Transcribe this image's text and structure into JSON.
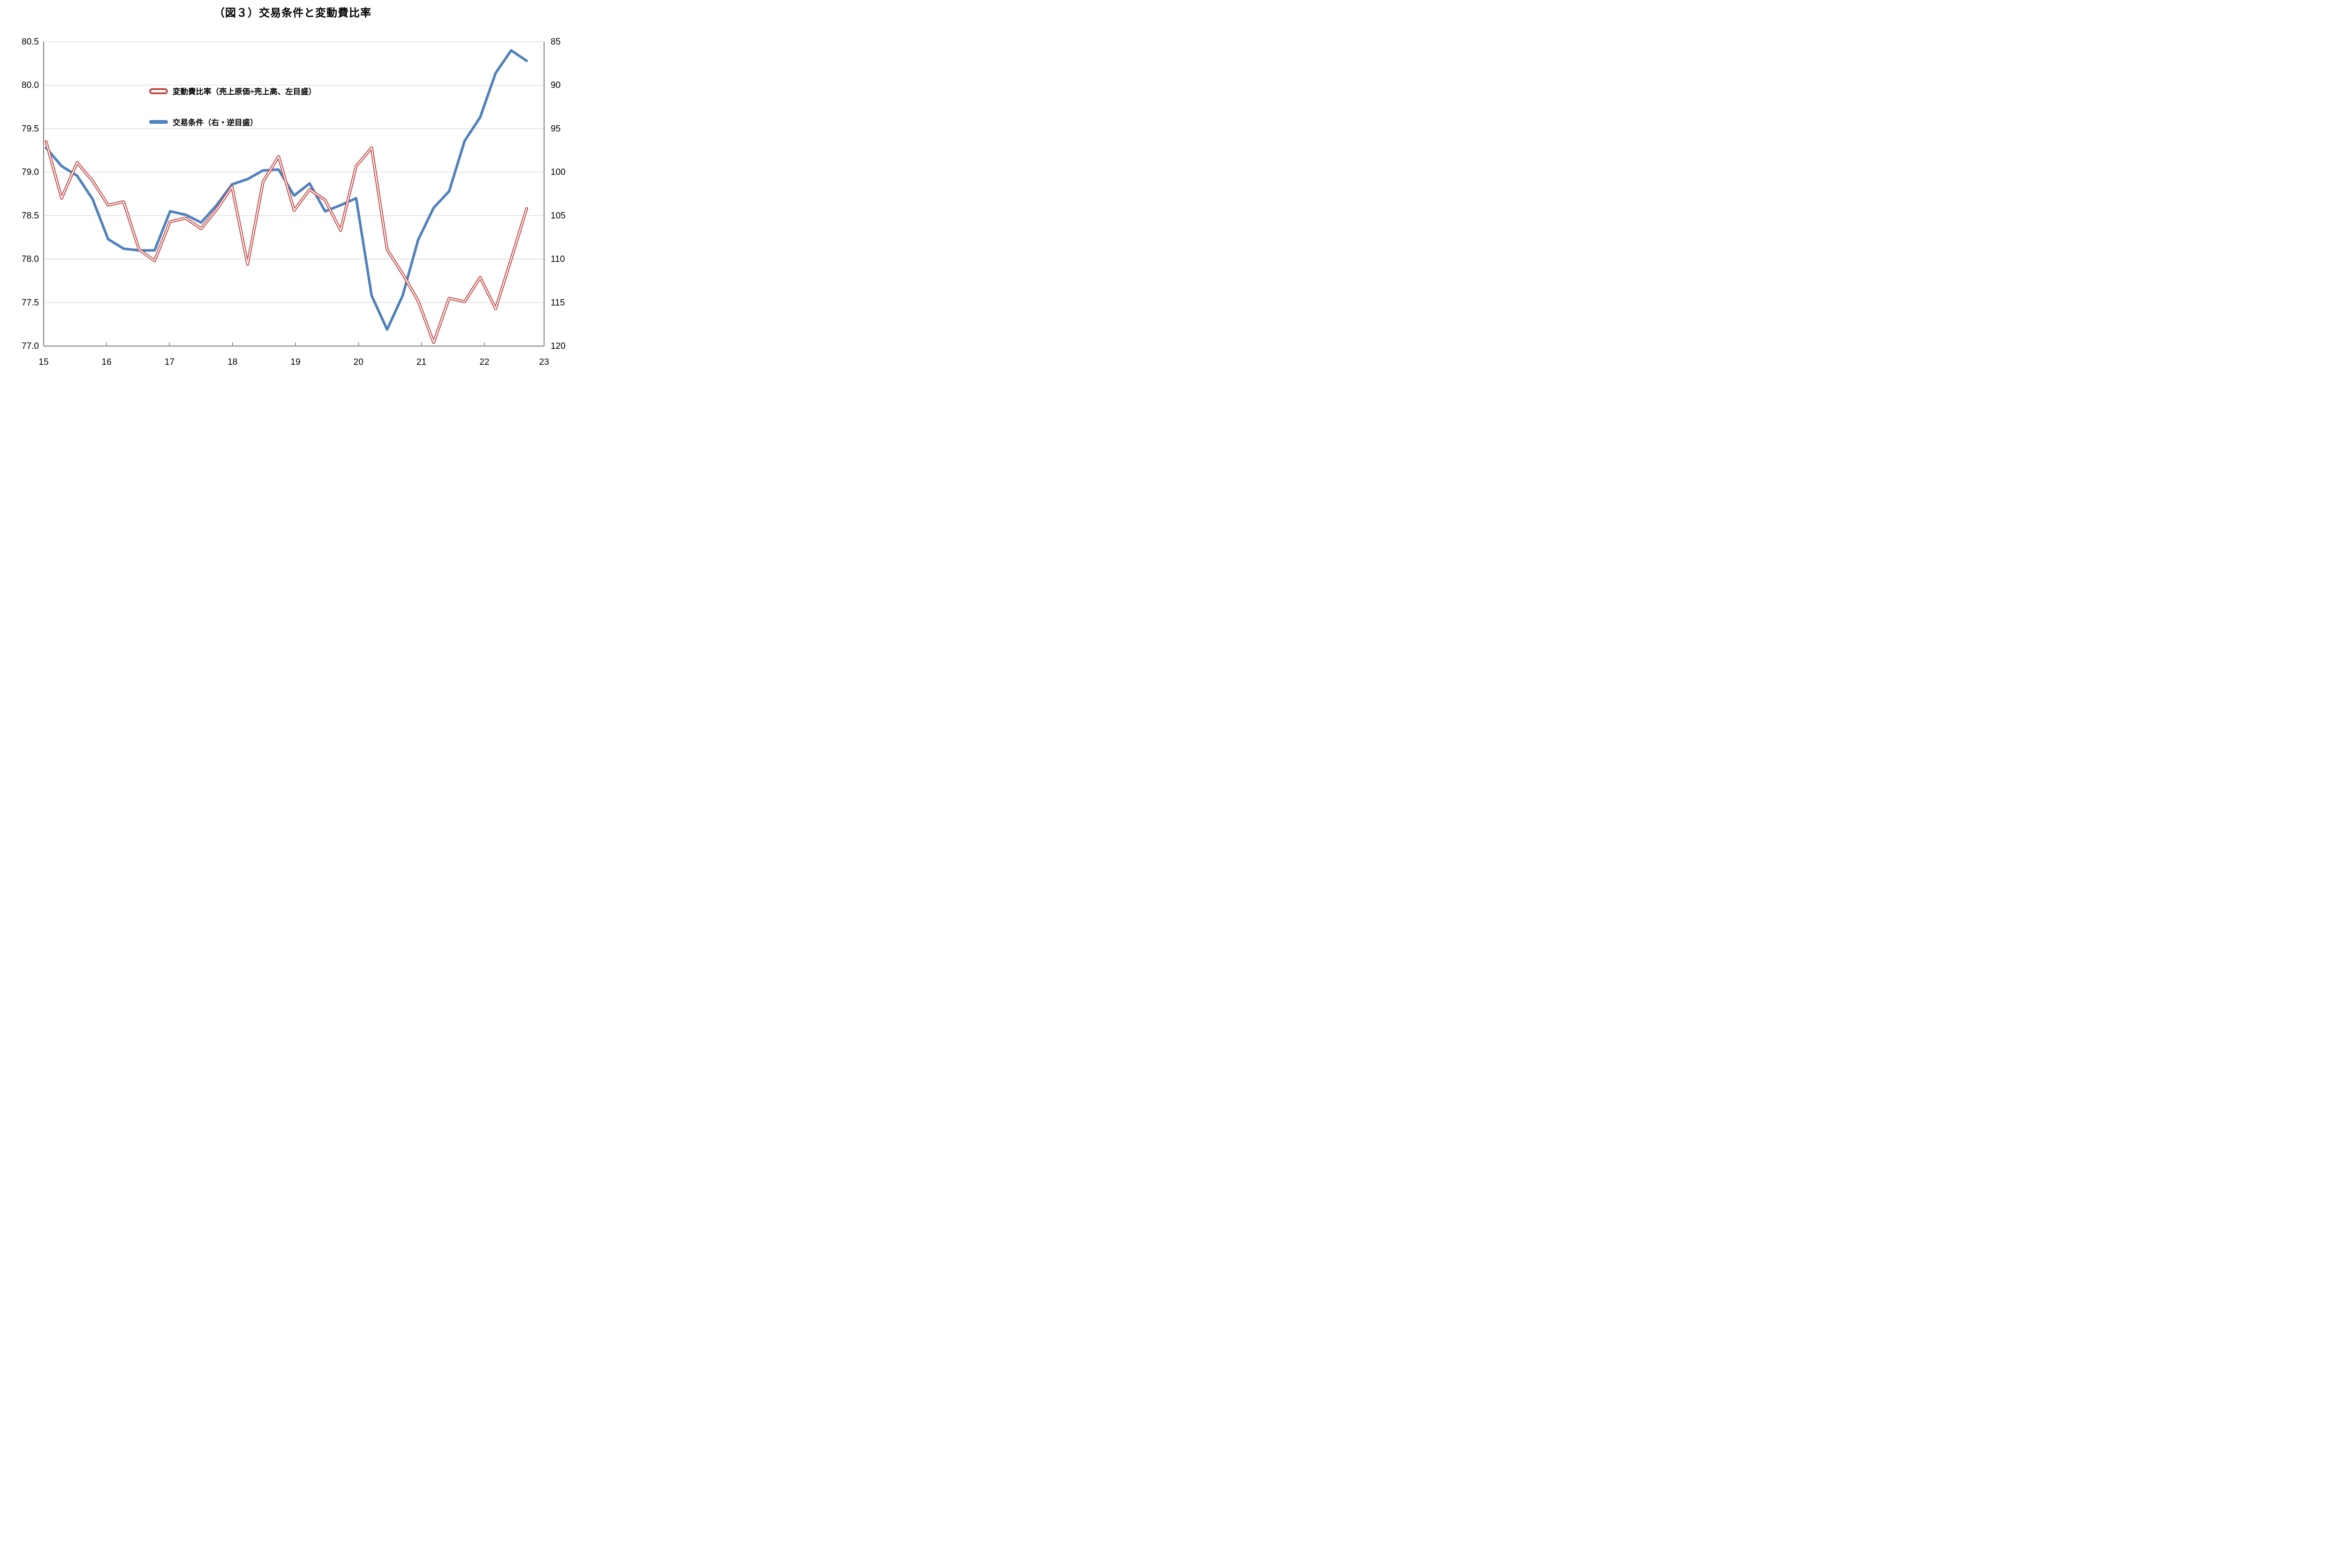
{
  "title": "（図３）交易条件と変動費比率",
  "legend": {
    "red_label": "変動費比率（売上原価÷売上高、左目盛）",
    "blue_label": "交易条件（右・逆目盛）"
  },
  "colors": {
    "red_series": "#C0504D",
    "blue_series": "#4F81BD",
    "gridline": "#D9D9D9",
    "axis_line": "#808080",
    "text": "#000000"
  },
  "chart_data": {
    "type": "line",
    "title": "（図３）交易条件と変動費比率",
    "x": [
      15.0,
      15.25,
      15.5,
      15.75,
      16.0,
      16.25,
      16.5,
      16.75,
      17.0,
      17.25,
      17.5,
      17.75,
      18.0,
      18.25,
      18.5,
      18.75,
      19.0,
      19.25,
      19.5,
      19.75,
      20.0,
      20.25,
      20.5,
      20.75,
      21.0,
      21.25,
      21.5,
      21.75,
      22.0,
      22.25,
      22.5,
      22.75
    ],
    "series": [
      {
        "name": "変動費比率（売上原価÷売上高、左目盛）",
        "axis": "left",
        "color": "#C0504D",
        "style": "double-line",
        "values": [
          79.35,
          78.7,
          79.11,
          78.9,
          78.62,
          78.66,
          78.11,
          77.98,
          78.43,
          78.47,
          78.35,
          78.57,
          78.83,
          77.94,
          78.89,
          79.18,
          78.56,
          78.8,
          78.68,
          78.33,
          79.07,
          79.28,
          78.11,
          77.83,
          77.52,
          77.04,
          77.55,
          77.51,
          77.79,
          77.43,
          78.0,
          78.58
        ]
      },
      {
        "name": "交易条件（右・逆目盛）",
        "axis": "right",
        "color": "#4F81BD",
        "style": "solid",
        "values": [
          97.2,
          99.3,
          100.4,
          103.1,
          107.7,
          108.8,
          109.0,
          109.0,
          104.5,
          104.9,
          105.8,
          103.8,
          101.4,
          100.8,
          99.8,
          99.7,
          102.7,
          101.3,
          104.5,
          103.8,
          103.0,
          114.2,
          118.1,
          114.2,
          107.8,
          104.1,
          102.2,
          96.4,
          93.7,
          88.6,
          86.0,
          87.2
        ]
      }
    ],
    "axes": {
      "left": {
        "min": 77.0,
        "max": 80.5,
        "step": 0.5,
        "labels": [
          "80.5",
          "80.0",
          "79.5",
          "79.0",
          "78.5",
          "78.0",
          "77.5",
          "77.0"
        ]
      },
      "right": {
        "min": 85,
        "max": 120,
        "step": 5,
        "inverted": true,
        "labels": [
          "85",
          "90",
          "95",
          "100",
          "105",
          "110",
          "115",
          "120"
        ]
      },
      "x": {
        "min": 15,
        "max": 23,
        "step": 1,
        "labels": [
          "15",
          "16",
          "17",
          "18",
          "19",
          "20",
          "21",
          "22",
          "23"
        ]
      }
    },
    "grid": true,
    "legend_position": "inside-top-left-of-plot"
  }
}
